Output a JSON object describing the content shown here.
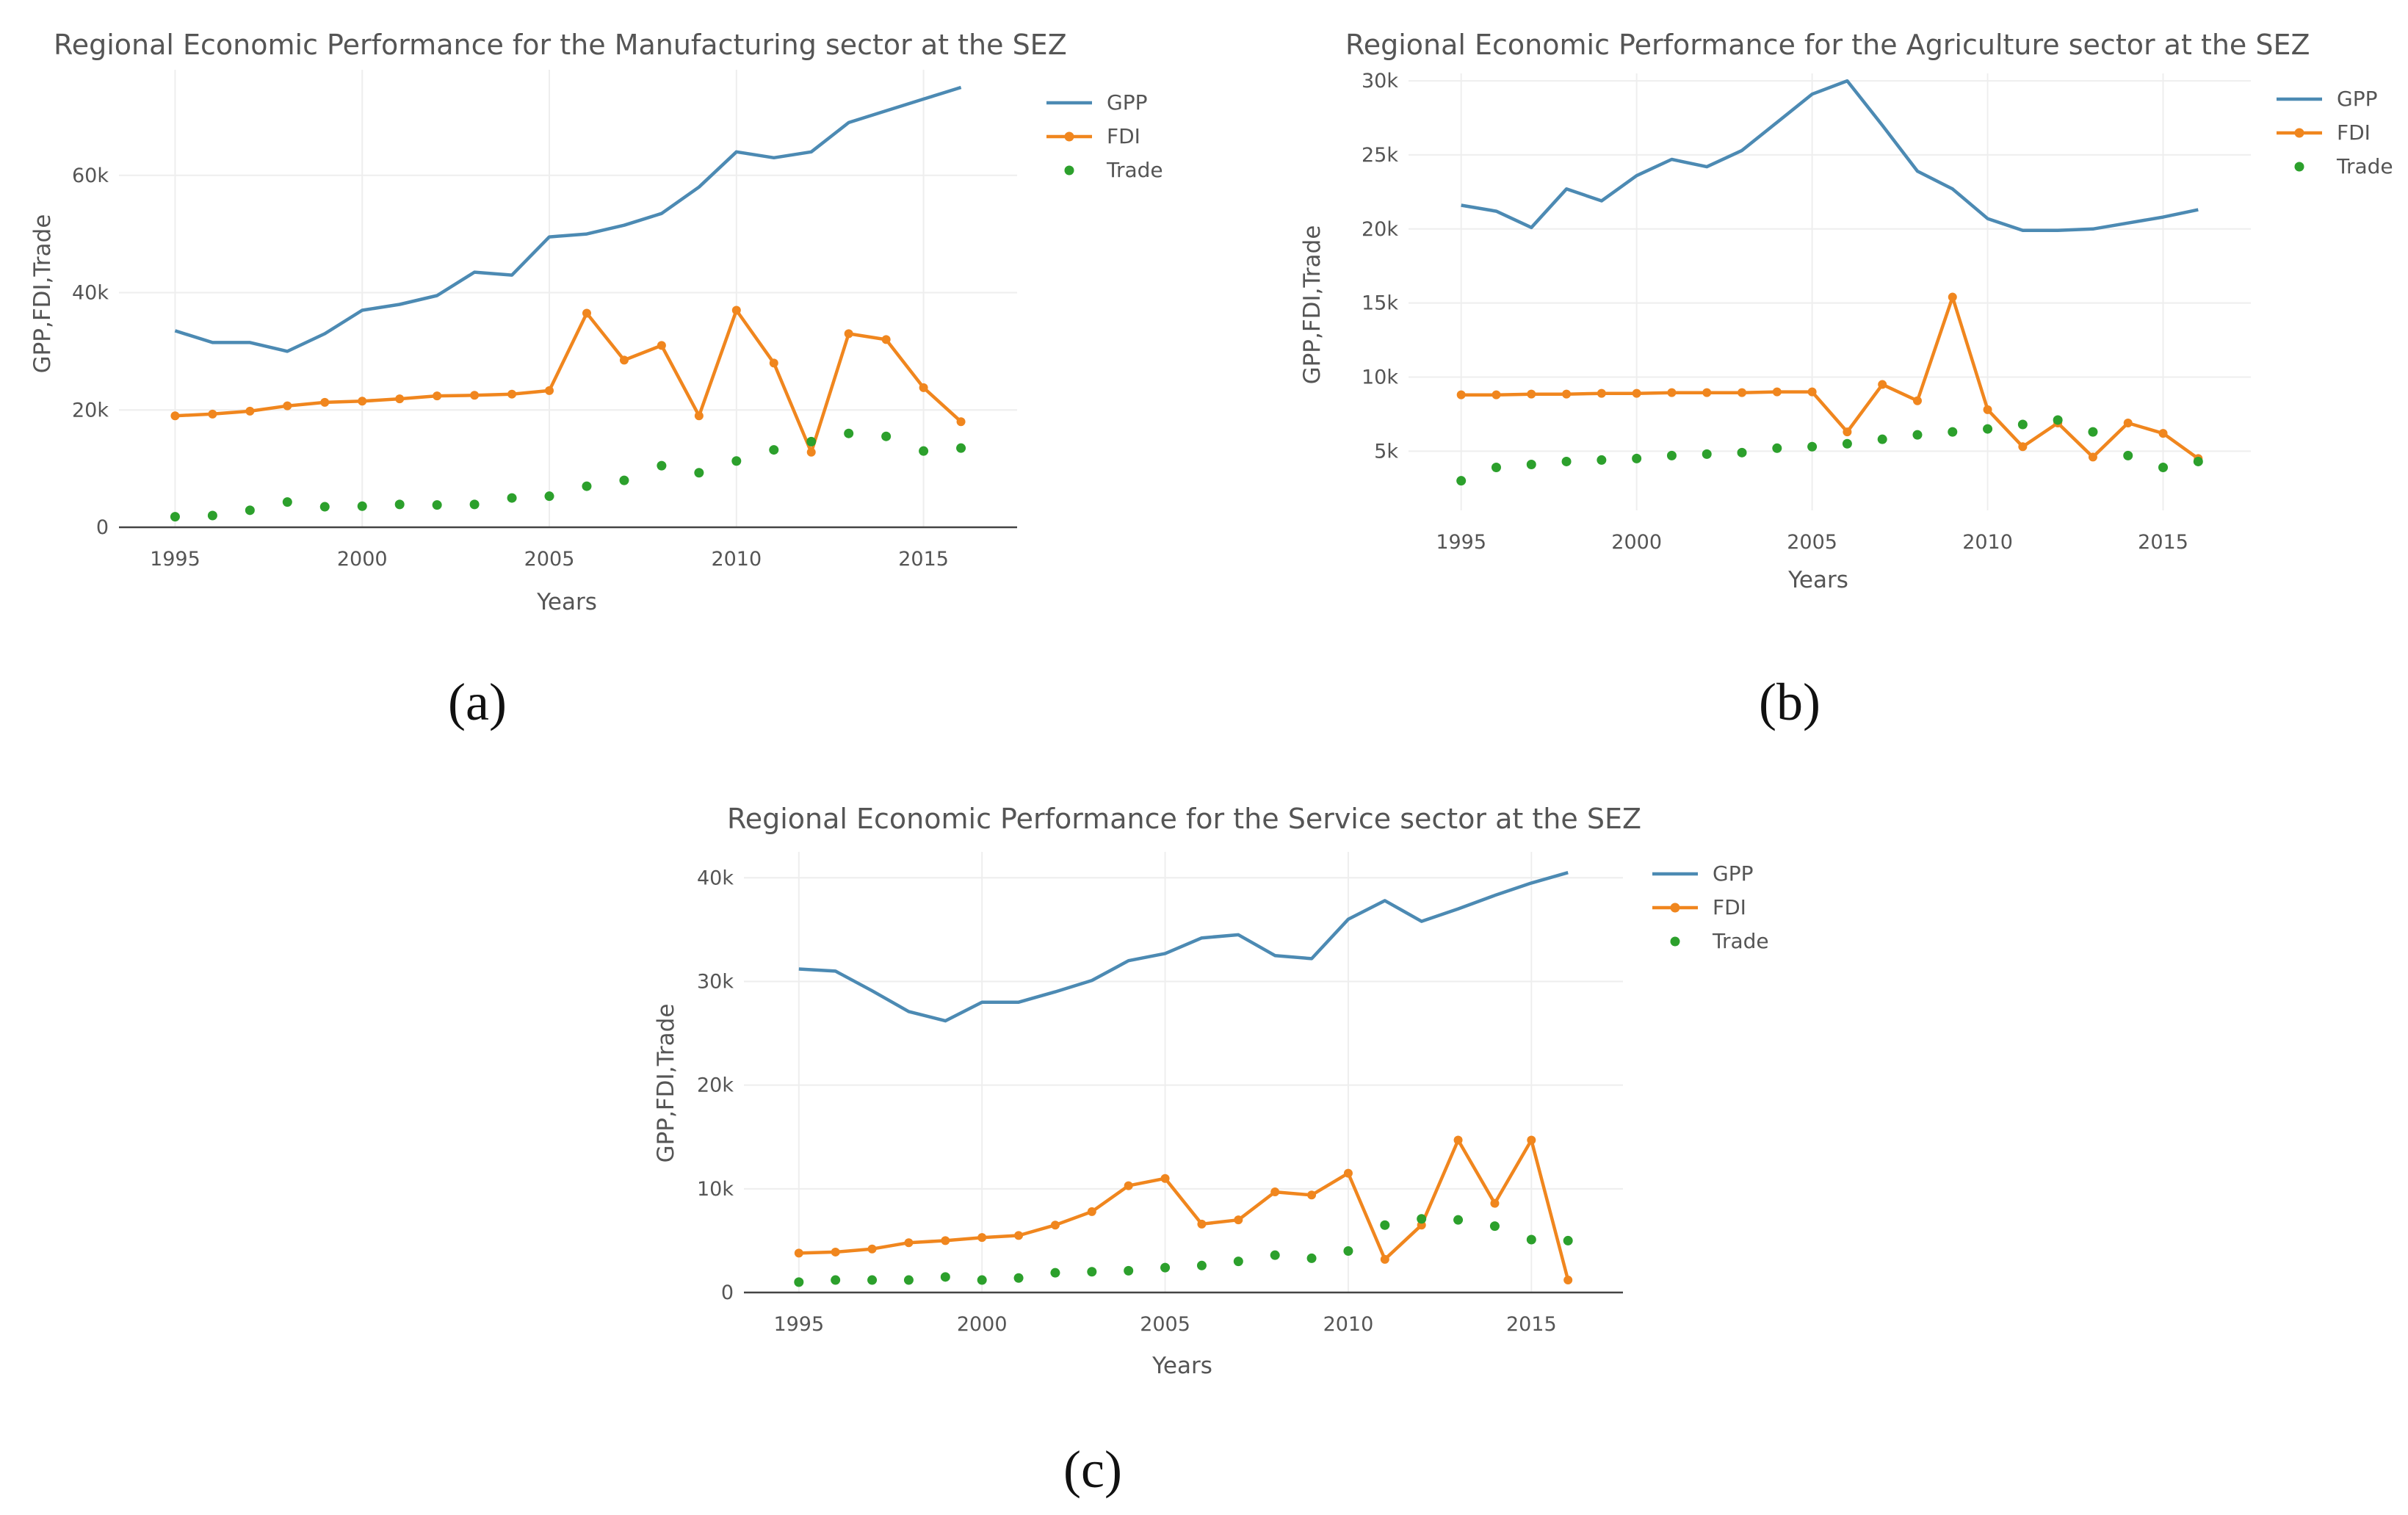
{
  "chart_data": [
    {
      "type": "line",
      "panel_label": "(a)",
      "title": "Regional Economic Performance for the Manufacturing sector at the SEZ",
      "xlabel": "Years",
      "ylabel": "GPP,FDI,Trade",
      "x": [
        1995,
        1996,
        1997,
        1998,
        1999,
        2000,
        2001,
        2002,
        2003,
        2004,
        2005,
        2006,
        2007,
        2008,
        2009,
        2010,
        2011,
        2012,
        2013,
        2014,
        2015,
        2016
      ],
      "xlim": [
        1993.5,
        2017.5
      ],
      "ylim": [
        0,
        78000
      ],
      "xticks": [
        {
          "value": 1995,
          "label": "1995"
        },
        {
          "value": 2000,
          "label": "2000"
        },
        {
          "value": 2005,
          "label": "2005"
        },
        {
          "value": 2010,
          "label": "2010"
        },
        {
          "value": 2015,
          "label": "2015"
        }
      ],
      "yticks": [
        {
          "value": 0,
          "label": "0"
        },
        {
          "value": 20000,
          "label": "20k"
        },
        {
          "value": 40000,
          "label": "40k"
        },
        {
          "value": 60000,
          "label": "60k"
        }
      ],
      "series": [
        {
          "name": "GPP",
          "mode": "lines",
          "color": "#4c8ab3",
          "values": [
            33500,
            31500,
            31500,
            30000,
            33000,
            37000,
            38000,
            39500,
            43500,
            43000,
            49500,
            50000,
            51500,
            53500,
            58000,
            64000,
            63000,
            64000,
            69000,
            71000,
            73000,
            75000
          ]
        },
        {
          "name": "FDI",
          "mode": "lines+markers",
          "color": "#f0861e",
          "values": [
            19000,
            19300,
            19800,
            20700,
            21300,
            21500,
            21900,
            22400,
            22500,
            22700,
            23300,
            36500,
            28500,
            31000,
            19000,
            37000,
            28000,
            12800,
            33000,
            32000,
            23800,
            18000
          ]
        },
        {
          "name": "Trade",
          "mode": "markers",
          "color": "#2ca02c",
          "values": [
            1800,
            2000,
            2900,
            4300,
            3500,
            3600,
            3900,
            3800,
            3900,
            5000,
            5300,
            7000,
            8000,
            10500,
            9300,
            11300,
            13200,
            14600,
            16000,
            15500,
            13000,
            13500
          ]
        }
      ]
    },
    {
      "type": "line",
      "panel_label": "(b)",
      "title": "Regional Economic Performance for the Agriculture sector at the SEZ",
      "xlabel": "Years",
      "ylabel": "GPP,FDI,Trade",
      "x": [
        1995,
        1996,
        1997,
        1998,
        1999,
        2000,
        2001,
        2002,
        2003,
        2004,
        2005,
        2006,
        2007,
        2008,
        2009,
        2010,
        2011,
        2012,
        2013,
        2014,
        2015,
        2016
      ],
      "xlim": [
        1993.5,
        2017.5
      ],
      "ylim": [
        1000,
        30500
      ],
      "xticks": [
        {
          "value": 1995,
          "label": "1995"
        },
        {
          "value": 2000,
          "label": "2000"
        },
        {
          "value": 2005,
          "label": "2005"
        },
        {
          "value": 2010,
          "label": "2010"
        },
        {
          "value": 2015,
          "label": "2015"
        }
      ],
      "yticks": [
        {
          "value": 5000,
          "label": "5k"
        },
        {
          "value": 10000,
          "label": "10k"
        },
        {
          "value": 15000,
          "label": "15k"
        },
        {
          "value": 20000,
          "label": "20k"
        },
        {
          "value": 25000,
          "label": "25k"
        },
        {
          "value": 30000,
          "label": "30k"
        }
      ],
      "series": [
        {
          "name": "GPP",
          "mode": "lines",
          "color": "#4c8ab3",
          "values": [
            21600,
            21200,
            20100,
            22700,
            21900,
            23600,
            24700,
            24200,
            25300,
            27200,
            29100,
            30000,
            27000,
            23900,
            22700,
            20700,
            19900,
            19900,
            20000,
            20400,
            20800,
            21300
          ]
        },
        {
          "name": "FDI",
          "mode": "lines+markers",
          "color": "#f0861e",
          "values": [
            8800,
            8800,
            8850,
            8850,
            8900,
            8900,
            8950,
            8950,
            8950,
            9000,
            9000,
            6300,
            9500,
            8400,
            15400,
            7800,
            5300,
            6900,
            4600,
            6900,
            6200,
            4500
          ]
        },
        {
          "name": "Trade",
          "mode": "markers",
          "color": "#2ca02c",
          "values": [
            3000,
            3900,
            4100,
            4300,
            4400,
            4500,
            4700,
            4800,
            4900,
            5200,
            5300,
            5500,
            5800,
            6100,
            6300,
            6500,
            6800,
            7100,
            6300,
            4700,
            3900,
            4300
          ]
        }
      ]
    },
    {
      "type": "line",
      "panel_label": "(c)",
      "title": "Regional Economic Performance for the Service sector at the SEZ",
      "xlabel": "Years",
      "ylabel": "GPP,FDI,Trade",
      "x": [
        1995,
        1996,
        1997,
        1998,
        1999,
        2000,
        2001,
        2002,
        2003,
        2004,
        2005,
        2006,
        2007,
        2008,
        2009,
        2010,
        2011,
        2012,
        2013,
        2014,
        2015,
        2016
      ],
      "xlim": [
        1993.5,
        2017.5
      ],
      "ylim": [
        0,
        42500
      ],
      "xticks": [
        {
          "value": 1995,
          "label": "1995"
        },
        {
          "value": 2000,
          "label": "2000"
        },
        {
          "value": 2005,
          "label": "2005"
        },
        {
          "value": 2010,
          "label": "2010"
        },
        {
          "value": 2015,
          "label": "2015"
        }
      ],
      "yticks": [
        {
          "value": 0,
          "label": "0"
        },
        {
          "value": 10000,
          "label": "10k"
        },
        {
          "value": 20000,
          "label": "20k"
        },
        {
          "value": 30000,
          "label": "30k"
        },
        {
          "value": 40000,
          "label": "40k"
        }
      ],
      "series": [
        {
          "name": "GPP",
          "mode": "lines",
          "color": "#4c8ab3",
          "values": [
            31200,
            31000,
            29100,
            27100,
            26200,
            28000,
            28000,
            29000,
            30100,
            32000,
            32700,
            34200,
            34500,
            32500,
            32200,
            36000,
            37800,
            35800,
            37000,
            38300,
            39500,
            40500
          ]
        },
        {
          "name": "FDI",
          "mode": "lines+markers",
          "color": "#f0861e",
          "values": [
            3800,
            3900,
            4200,
            4800,
            5000,
            5300,
            5500,
            6500,
            7800,
            10300,
            11000,
            6600,
            7000,
            9700,
            9400,
            11500,
            3200,
            6500,
            14700,
            8600,
            14700,
            1200
          ]
        },
        {
          "name": "Trade",
          "mode": "markers",
          "color": "#2ca02c",
          "values": [
            1000,
            1200,
            1200,
            1200,
            1500,
            1200,
            1400,
            1900,
            2000,
            2100,
            2400,
            2600,
            3000,
            3600,
            3300,
            4000,
            6500,
            7100,
            7000,
            6400,
            5100,
            5000
          ]
        }
      ]
    }
  ]
}
